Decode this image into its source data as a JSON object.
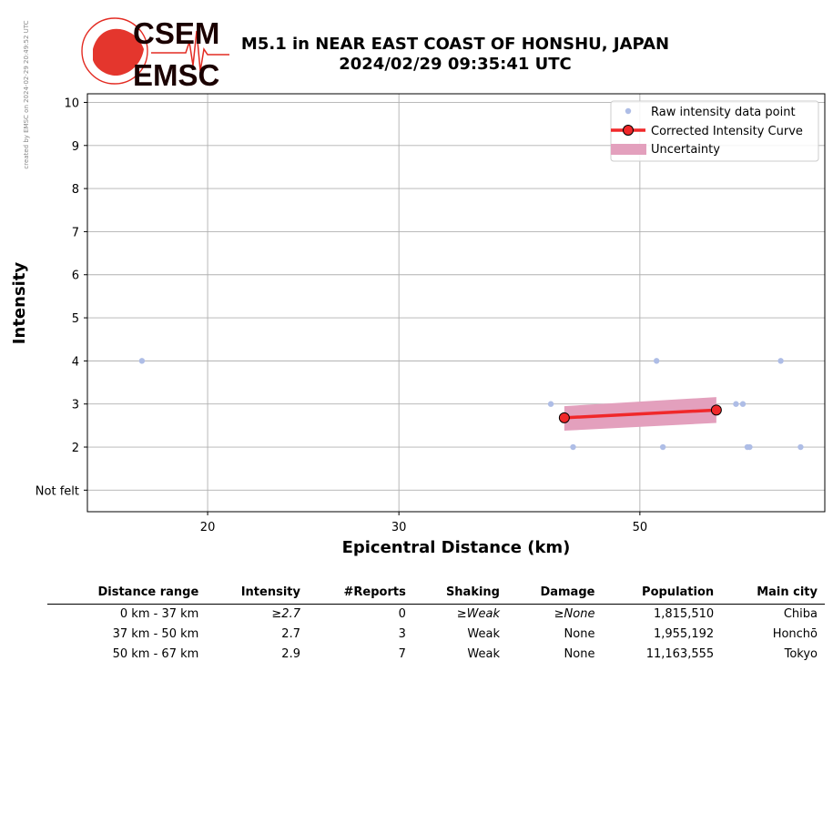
{
  "side_note": "created by EMSC on 2024-02-29 20:49:52 UTC",
  "logo": {
    "top_text": "CSEM",
    "bottom_text": "EMSC",
    "color": "#e32b22"
  },
  "title": {
    "line1": "M5.1 in NEAR EAST COAST OF HONSHU, JAPAN",
    "line2": "2024/02/29 09:35:41 UTC"
  },
  "chart_data": {
    "type": "scatter",
    "xlabel": "Epicentral Distance (km)",
    "ylabel": "Intensity",
    "x_scale": "log",
    "xlim": [
      15.5,
      74
    ],
    "ylim": [
      0.5,
      10.2
    ],
    "x_ticks": [
      20,
      30,
      50
    ],
    "y_ticks": [
      {
        "v": 1,
        "label": "Not felt"
      },
      {
        "v": 2,
        "label": "2"
      },
      {
        "v": 3,
        "label": "3"
      },
      {
        "v": 4,
        "label": "4"
      },
      {
        "v": 5,
        "label": "5"
      },
      {
        "v": 6,
        "label": "6"
      },
      {
        "v": 7,
        "label": "7"
      },
      {
        "v": 8,
        "label": "8"
      },
      {
        "v": 9,
        "label": "9"
      },
      {
        "v": 10,
        "label": "10"
      }
    ],
    "grid": true,
    "legend_position": "top-right",
    "colors": {
      "raw": "#aebde6",
      "curve": "#f0282a",
      "uncertainty": "#e3a0bd"
    },
    "series": [
      {
        "name": "Raw intensity data point",
        "kind": "points",
        "points": [
          [
            17.4,
            4
          ],
          [
            41.4,
            3
          ],
          [
            43.4,
            2
          ],
          [
            51.8,
            4
          ],
          [
            52.5,
            2
          ],
          [
            61.3,
            3
          ],
          [
            62.2,
            3
          ],
          [
            62.8,
            2
          ],
          [
            63.1,
            2
          ],
          [
            67.4,
            4
          ],
          [
            70.3,
            2
          ]
        ]
      },
      {
        "name": "Corrected Intensity Curve",
        "kind": "line",
        "points": [
          [
            42.6,
            2.68
          ],
          [
            58.8,
            2.86
          ]
        ]
      },
      {
        "name": "Uncertainty",
        "kind": "band",
        "x": [
          42.6,
          58.8
        ],
        "lower": [
          2.38,
          2.56
        ],
        "upper": [
          2.95,
          3.16
        ]
      }
    ]
  },
  "table": {
    "headers": [
      "Distance range",
      "Intensity",
      "#Reports",
      "Shaking",
      "Damage",
      "Population",
      "Main city"
    ],
    "rows": [
      [
        "0 km -   37 km",
        "≥2.7",
        "0",
        "≥Weak",
        "≥None",
        "1,815,510",
        "Chiba"
      ],
      [
        "37 km -   50 km",
        "2.7",
        "3",
        "Weak",
        "None",
        "1,955,192",
        "Honchō"
      ],
      [
        "50 km -   67 km",
        "2.9",
        "7",
        "Weak",
        "None",
        "11,163,555",
        "Tokyo"
      ]
    ]
  }
}
